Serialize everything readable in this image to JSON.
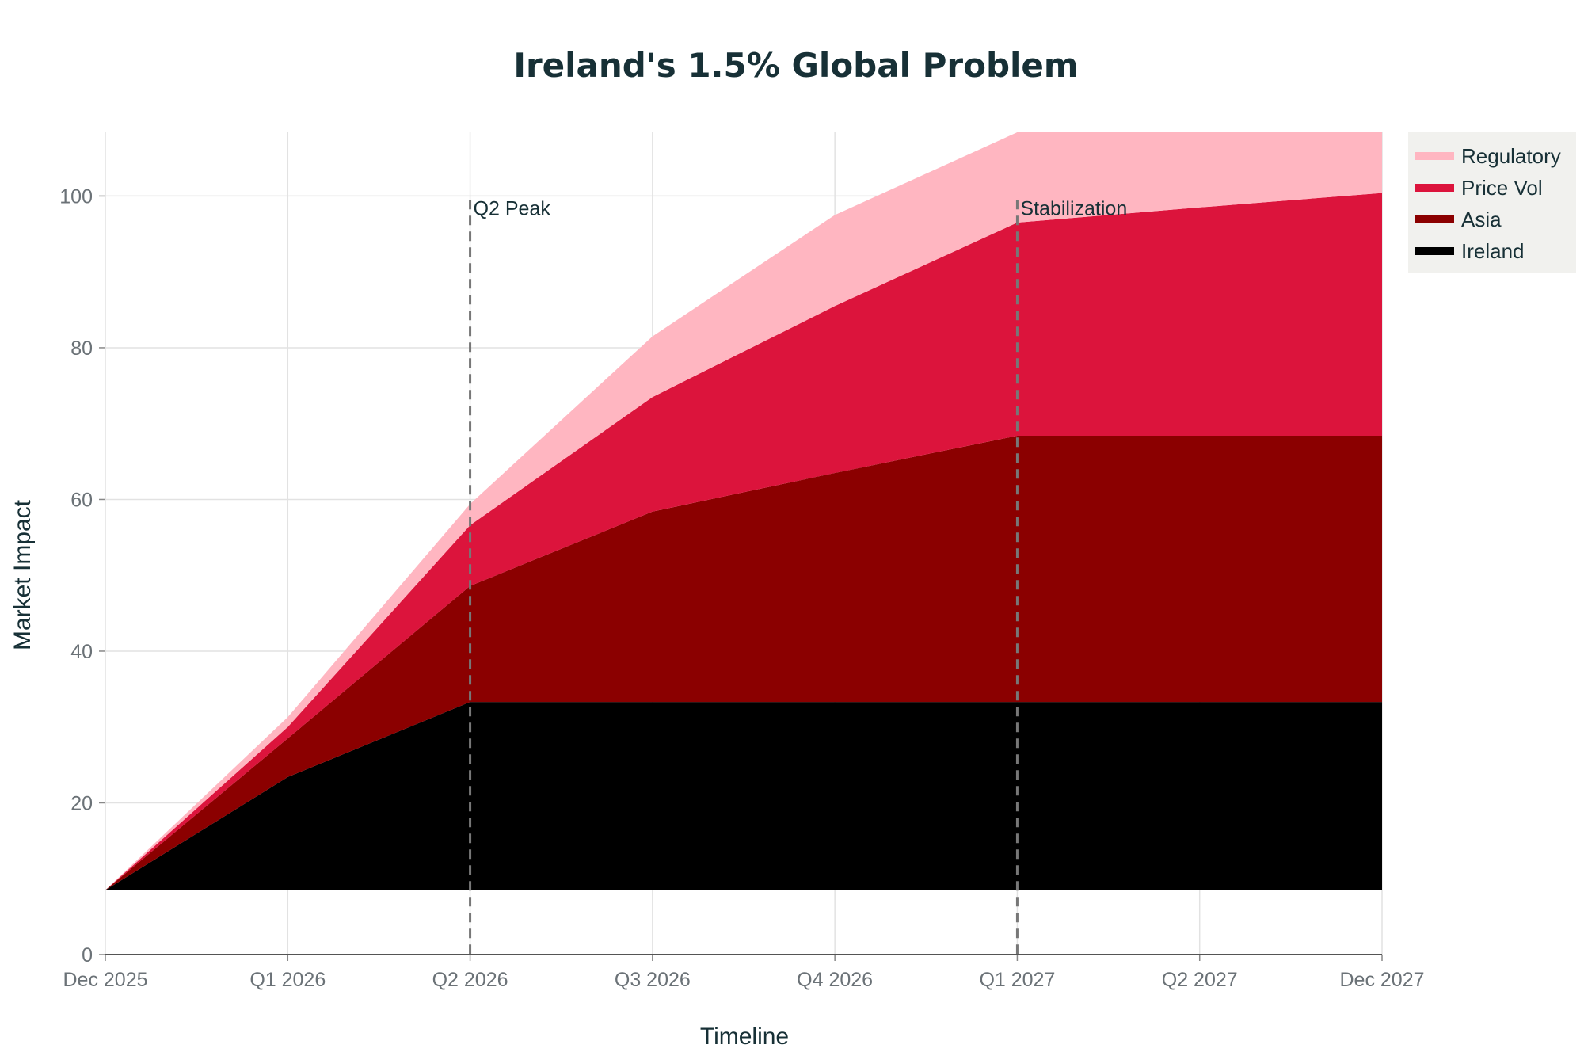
{
  "chart_data": {
    "type": "area",
    "stacked": true,
    "title": "Ireland's 1.5% Global Problem",
    "xlabel": "Timeline",
    "ylabel": "Market Impact",
    "categories": [
      "Dec 2025",
      "Q1 2026",
      "Q2 2026",
      "Q3 2026",
      "Q4 2026",
      "Q1 2027",
      "Q2 2027",
      "Dec 2027"
    ],
    "baseline": 8.5,
    "ylim": [
      0,
      108.4
    ],
    "yticks": [
      0,
      20,
      40,
      60,
      80,
      100
    ],
    "grid": true,
    "legend_position": "top-right",
    "series": [
      {
        "name": "Ireland",
        "color": "#000000",
        "cumulative": [
          8.5,
          23.4,
          33.3,
          33.3,
          33.3,
          33.3,
          33.3,
          33.3
        ]
      },
      {
        "name": "Asia",
        "color": "#8b0000",
        "cumulative": [
          8.5,
          28.5,
          48.6,
          58.4,
          63.5,
          68.4,
          68.4,
          68.4
        ]
      },
      {
        "name": "Price Vol",
        "color": "#dc143c",
        "cumulative": [
          8.5,
          30.0,
          56.6,
          73.5,
          85.5,
          96.5,
          98.5,
          100.4
        ]
      },
      {
        "name": "Regulatory",
        "color": "#ffb6c1",
        "cumulative": [
          8.5,
          31.3,
          59.4,
          81.5,
          97.5,
          112,
          112,
          112
        ]
      }
    ],
    "legend_order": [
      "Regulatory",
      "Price Vol",
      "Asia",
      "Ireland"
    ],
    "annotations": [
      {
        "x": "Q2 2026",
        "label": "Q2 Peak"
      },
      {
        "x": "Q1 2027",
        "label": "Stabilization"
      }
    ]
  }
}
